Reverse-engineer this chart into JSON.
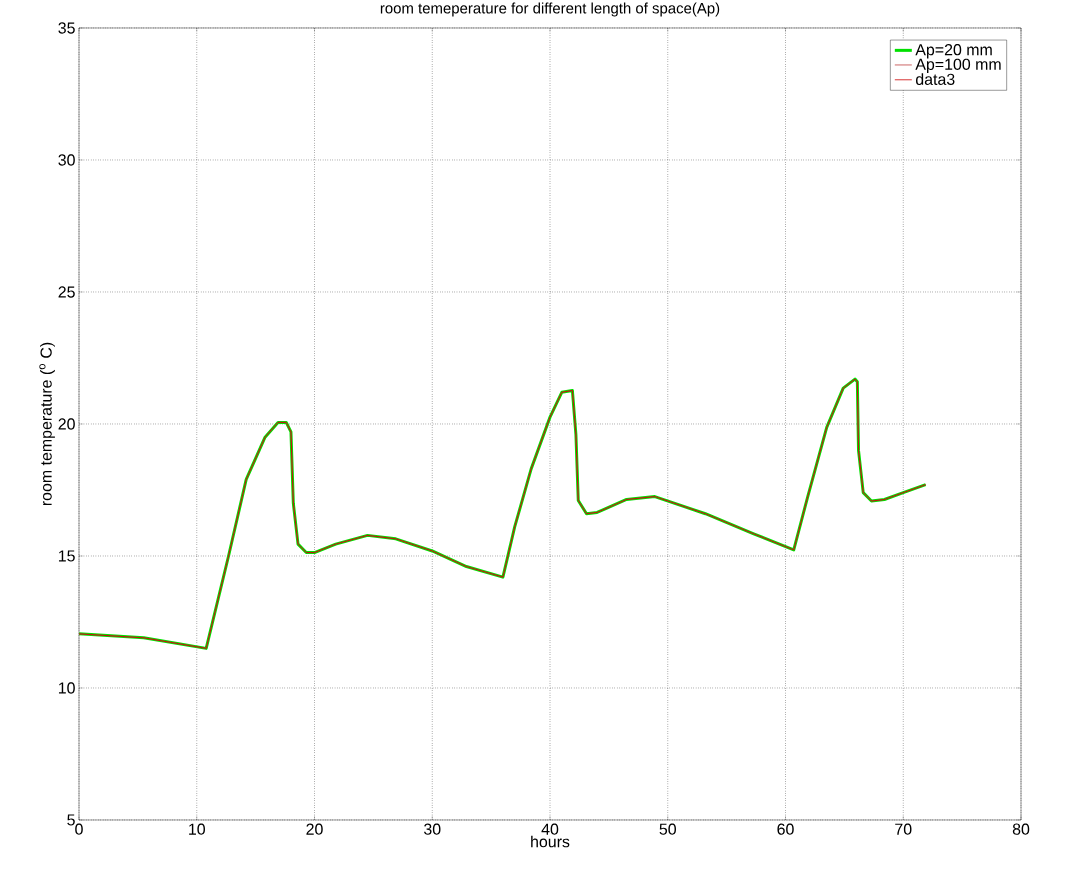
{
  "chart_data": {
    "type": "line",
    "title": "room temeperature for different length of space(Ap)",
    "xlabel": "hours",
    "ylabel": "room temperature ($^{o}$ C)",
    "x": [
      0,
      5.5,
      10.8,
      12.7,
      14.2,
      15.8,
      16.9,
      17.6,
      18.0,
      18.2,
      18.6,
      19.3,
      20,
      21.8,
      24.5,
      26.9,
      30,
      32.9,
      36.0,
      37.0,
      38.4,
      40,
      41.0,
      41.9,
      42.2,
      42.4,
      43.1,
      44.0,
      46.5,
      48.9,
      53.2,
      57.3,
      60.7,
      61.9,
      63.5,
      64.9,
      65.9,
      66.1,
      66.2,
      66.6,
      67.3,
      68.4,
      70,
      71.9
    ],
    "series": [
      {
        "name": "Ap=20 mm",
        "color": "#00e000",
        "values": [
          12.05,
          11.9,
          11.5,
          15.0,
          17.9,
          19.5,
          20.06,
          20.06,
          19.7,
          17.0,
          15.45,
          15.13,
          15.13,
          15.45,
          15.78,
          15.65,
          15.19,
          14.6,
          14.2,
          16.1,
          18.3,
          20.26,
          21.2,
          21.27,
          19.6,
          17.1,
          16.6,
          16.65,
          17.14,
          17.25,
          16.6,
          15.84,
          15.23,
          17.27,
          19.87,
          21.36,
          21.7,
          21.6,
          19.0,
          17.4,
          17.08,
          17.14,
          17.4,
          17.7
        ]
      },
      {
        "name": "Ap=100 mm",
        "color": "#c04040",
        "values": [
          12.05,
          11.9,
          11.5,
          15.0,
          17.9,
          19.5,
          20.06,
          20.06,
          19.7,
          17.0,
          15.45,
          15.13,
          15.13,
          15.45,
          15.78,
          15.65,
          15.19,
          14.6,
          14.2,
          16.1,
          18.3,
          20.26,
          21.2,
          21.27,
          19.6,
          17.1,
          16.6,
          16.65,
          17.14,
          17.25,
          16.6,
          15.84,
          15.23,
          17.27,
          19.87,
          21.36,
          21.7,
          21.6,
          19.0,
          17.4,
          17.08,
          17.14,
          17.4,
          17.7
        ]
      },
      {
        "name": "data3",
        "color": "#cc0000",
        "values": [
          12.05,
          11.9,
          11.5,
          15.0,
          17.9,
          19.5,
          20.06,
          20.06,
          19.7,
          17.0,
          15.45,
          15.13,
          15.13,
          15.45,
          15.78,
          15.65,
          15.19,
          14.6,
          14.2,
          16.1,
          18.3,
          20.26,
          21.2,
          21.27,
          19.6,
          17.1,
          16.6,
          16.65,
          17.14,
          17.25,
          16.6,
          15.84,
          15.23,
          17.27,
          19.87,
          21.36,
          21.7,
          21.6,
          19.0,
          17.4,
          17.08,
          17.14,
          17.4,
          17.7
        ]
      }
    ],
    "xlim": [
      0,
      80
    ],
    "ylim": [
      5,
      35
    ],
    "xticks": [
      0,
      10,
      20,
      30,
      40,
      50,
      60,
      70,
      80
    ],
    "yticks": [
      5,
      10,
      15,
      20,
      25,
      30,
      35
    ],
    "grid": true,
    "legend": "top right",
    "marker": "none",
    "line_style": "solid"
  }
}
